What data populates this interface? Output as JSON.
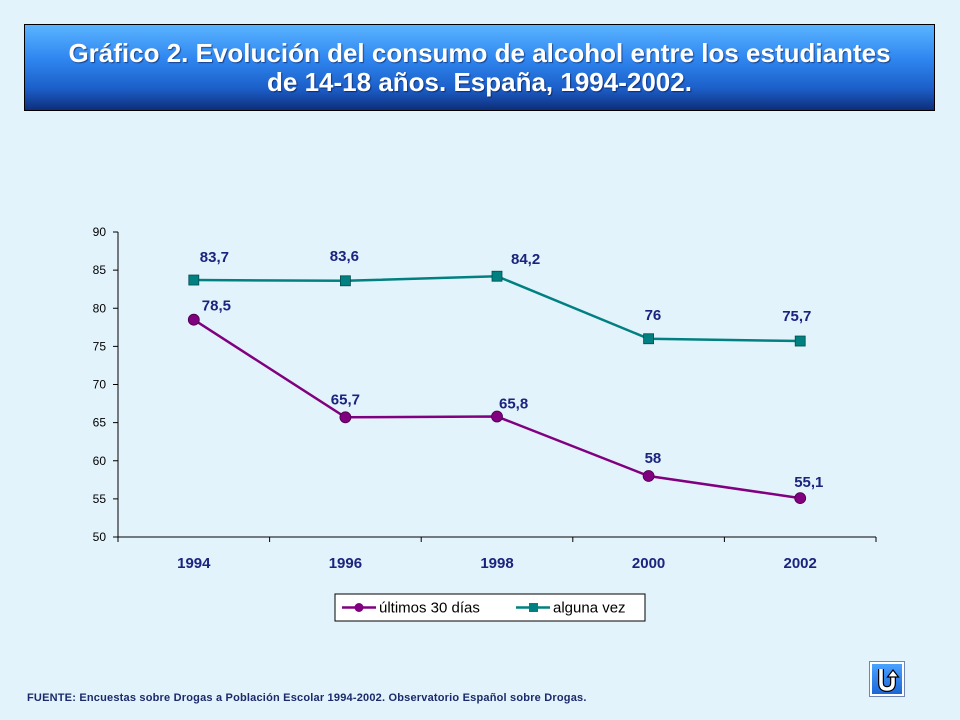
{
  "title": {
    "line1": "Gráfico 2. Evolución del consumo de alcohol entre los estudiantes",
    "line2": "de 14-18 años. España, 1994-2002."
  },
  "source": "FUENTE: Encuestas sobre Drogas a Población Escolar 1994-2002.  Observatorio Español sobre Drogas.",
  "nav_button": {
    "icon": "return-u-turn-icon"
  },
  "colors": {
    "series_ultimos": "#800080",
    "series_alguna": "#008080",
    "label_text": "#1a237e",
    "axis": "#000000"
  },
  "chart_data": {
    "type": "line",
    "categories": [
      "1994",
      "1996",
      "1998",
      "2000",
      "2002"
    ],
    "series": [
      {
        "name": "últimos 30 días",
        "values": [
          78.5,
          65.7,
          65.8,
          58,
          55.1
        ],
        "labels": [
          "78,5",
          "65,7",
          "65,8",
          "58",
          "55,1"
        ]
      },
      {
        "name": "alguna vez",
        "values": [
          83.7,
          83.6,
          84.2,
          76,
          75.7
        ],
        "labels": [
          "83,7",
          "83,6",
          "84,2",
          "76",
          "75,7"
        ]
      }
    ],
    "ylim": [
      50,
      90
    ],
    "yticks": [
      50,
      55,
      60,
      65,
      70,
      75,
      80,
      85,
      90
    ],
    "title": "",
    "xlabel": "",
    "ylabel": "",
    "grid": false,
    "legend": "bottom-center"
  }
}
